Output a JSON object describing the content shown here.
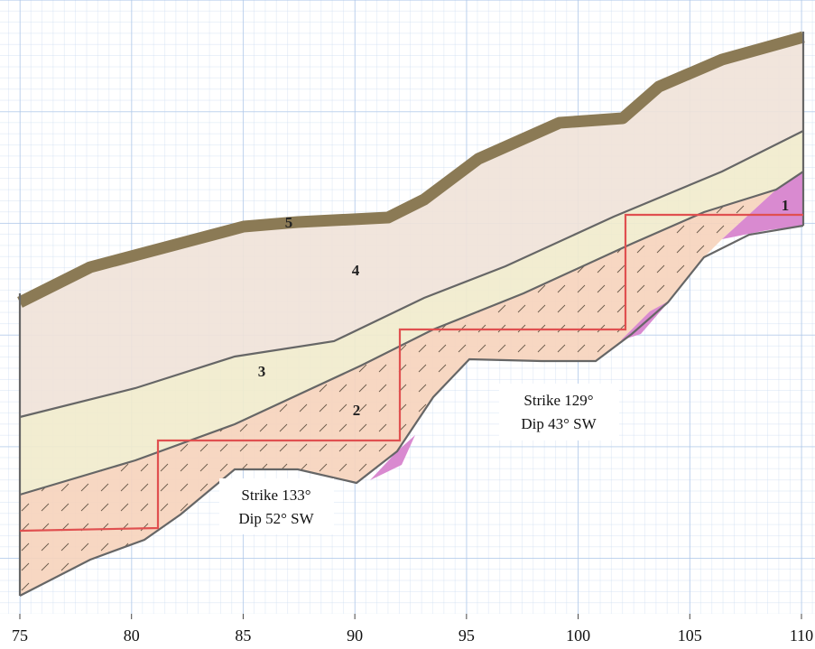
{
  "axis": {
    "xlim": [
      75,
      110
    ],
    "xticks": [
      75,
      80,
      85,
      90,
      95,
      100,
      105,
      110
    ]
  },
  "units": [
    {
      "label": "1"
    },
    {
      "label": "2"
    },
    {
      "label": "3"
    },
    {
      "label": "4"
    },
    {
      "label": "5"
    }
  ],
  "annotations": [
    {
      "lines": [
        "Strike 129°",
        "Dip 43° SW"
      ]
    },
    {
      "lines": [
        "Strike 133°",
        "Dip 52° SW"
      ]
    }
  ]
}
